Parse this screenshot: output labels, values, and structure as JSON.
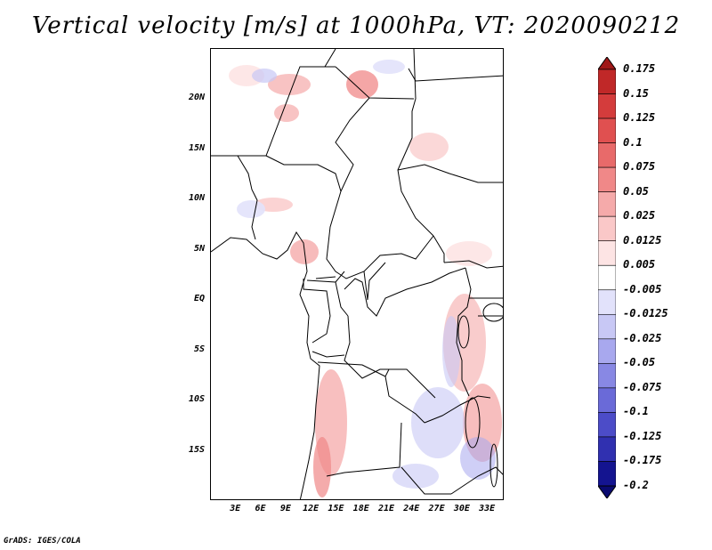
{
  "title": "Vertical velocity [m/s] at 1000hPa, VT: 2020090212",
  "credit": "GrADS: IGES/COLA",
  "map": {
    "region": "Central Africa",
    "lon_range": [
      0,
      35
    ],
    "lat_range": [
      -20,
      25
    ],
    "lat_ticks": [
      {
        "label": "20N",
        "lat": 20
      },
      {
        "label": "15N",
        "lat": 15
      },
      {
        "label": "10N",
        "lat": 10
      },
      {
        "label": "5N",
        "lat": 5
      },
      {
        "label": "EQ",
        "lat": 0
      },
      {
        "label": "5S",
        "lat": -5
      },
      {
        "label": "10S",
        "lat": -10
      },
      {
        "label": "15S",
        "lat": -15
      }
    ],
    "lon_ticks": [
      {
        "label": "3E",
        "lon": 3
      },
      {
        "label": "6E",
        "lon": 6
      },
      {
        "label": "9E",
        "lon": 9
      },
      {
        "label": "12E",
        "lon": 12
      },
      {
        "label": "15E",
        "lon": 15
      },
      {
        "label": "18E",
        "lon": 18
      },
      {
        "label": "21E",
        "lon": 21
      },
      {
        "label": "24E",
        "lon": 24
      },
      {
        "label": "27E",
        "lon": 27
      },
      {
        "label": "30E",
        "lon": 30
      },
      {
        "label": "33E",
        "lon": 33
      }
    ]
  },
  "colorbar": {
    "labels": [
      "0.175",
      "0.15",
      "0.125",
      "0.1",
      "0.075",
      "0.05",
      "0.025",
      "0.0125",
      "0.005",
      "-0.005",
      "-0.0125",
      "-0.025",
      "-0.05",
      "-0.075",
      "-0.1",
      "-0.125",
      "-0.175",
      "-0.2"
    ],
    "colors": [
      "#a01818",
      "#c02828",
      "#d43c3c",
      "#e05050",
      "#e86a6a",
      "#f08888",
      "#f5aaaa",
      "#fac8c8",
      "#fde4e4",
      "#ffffff",
      "#e2e2fb",
      "#c8c8f5",
      "#a8a8ee",
      "#8888e4",
      "#6a6ad8",
      "#4c4cc8",
      "#3030b0",
      "#141490",
      "#0a0a70"
    ]
  }
}
